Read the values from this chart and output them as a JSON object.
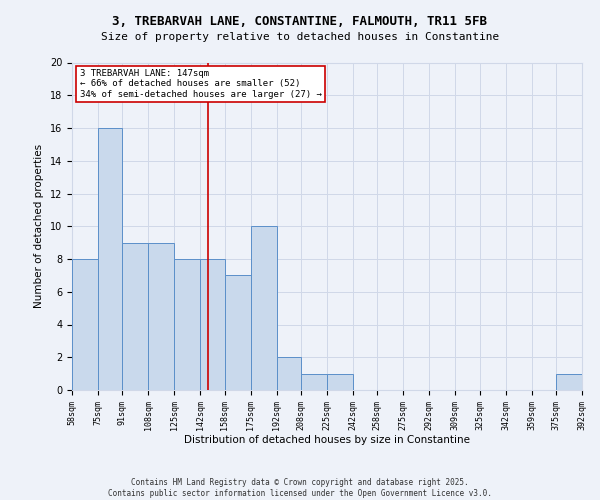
{
  "title_line1": "3, TREBARVAH LANE, CONSTANTINE, FALMOUTH, TR11 5FB",
  "title_line2": "Size of property relative to detached houses in Constantine",
  "xlabel": "Distribution of detached houses by size in Constantine",
  "ylabel": "Number of detached properties",
  "bin_edges": [
    58,
    75,
    91,
    108,
    125,
    142,
    158,
    175,
    192,
    208,
    225,
    242,
    258,
    275,
    292,
    309,
    325,
    342,
    359,
    375,
    392
  ],
  "bar_heights": [
    8,
    16,
    9,
    9,
    8,
    8,
    7,
    10,
    2,
    1,
    1,
    0,
    0,
    0,
    0,
    0,
    0,
    0,
    0,
    1
  ],
  "bar_color": "#c9d9ec",
  "bar_edge_color": "#5b8fc9",
  "grid_color": "#d0d8e8",
  "property_size": 147,
  "red_line_color": "#cc0000",
  "annotation_line1": "3 TREBARVAH LANE: 147sqm",
  "annotation_line2": "← 66% of detached houses are smaller (52)",
  "annotation_line3": "34% of semi-detached houses are larger (27) →",
  "annotation_box_color": "#ffffff",
  "annotation_box_edge": "#cc0000",
  "ylim": [
    0,
    20
  ],
  "yticks": [
    0,
    2,
    4,
    6,
    8,
    10,
    12,
    14,
    16,
    18,
    20
  ],
  "footer_line1": "Contains HM Land Registry data © Crown copyright and database right 2025.",
  "footer_line2": "Contains public sector information licensed under the Open Government Licence v3.0.",
  "bg_color": "#eef2f9",
  "title1_fontsize": 9,
  "title2_fontsize": 8,
  "axis_label_fontsize": 7.5,
  "tick_fontsize": 6,
  "footer_fontsize": 5.5
}
